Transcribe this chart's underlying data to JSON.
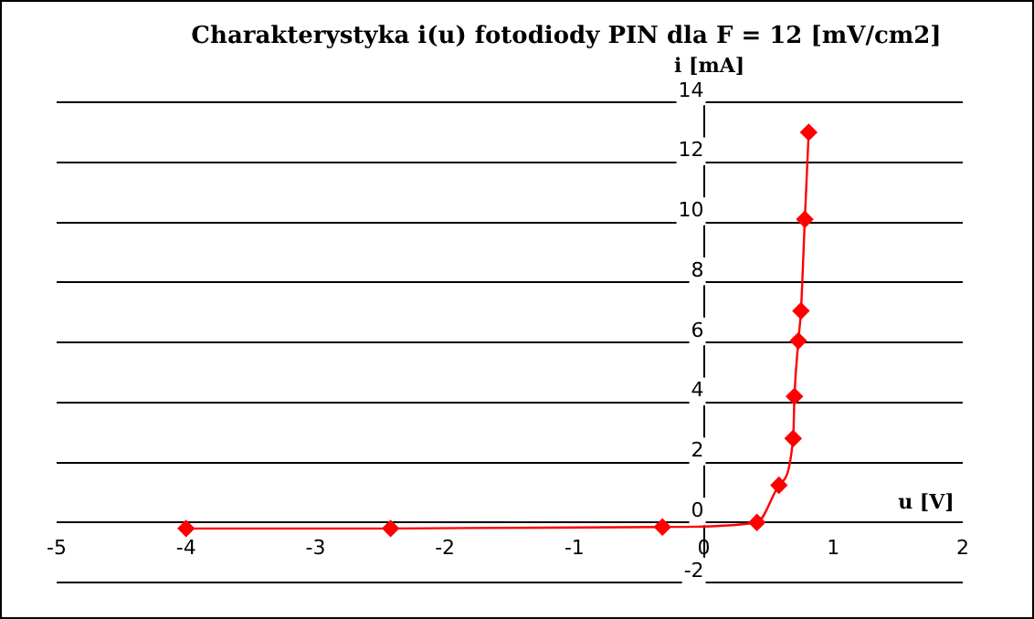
{
  "chart_data": {
    "type": "line",
    "title": "Charakterystyka i(u) fotodiody PIN dla F = 12 [mV/cm2]",
    "xlabel": "u [V]",
    "ylabel": "i [mA]",
    "x": [
      -4,
      -2.42,
      -0.32,
      0.41,
      0.58,
      0.69,
      0.7,
      0.73,
      0.75,
      0.78,
      0.81
    ],
    "series": [
      {
        "color": "#ff0000",
        "values": [
          -0.2,
          -0.2,
          -0.15,
          0,
          1.24,
          2.8,
          4.2,
          6.05,
          7.05,
          10.1,
          13
        ]
      }
    ],
    "xlim": [
      -5,
      2
    ],
    "xticks": [
      -5,
      -4,
      -3,
      -2,
      -1,
      0,
      1,
      2
    ],
    "ylim": [
      -2,
      14
    ],
    "yticks": [
      -2,
      0,
      2,
      4,
      6,
      8,
      10,
      12,
      14
    ],
    "grid": "y",
    "legend": false,
    "marker": "diamond",
    "line_style": "solid"
  }
}
